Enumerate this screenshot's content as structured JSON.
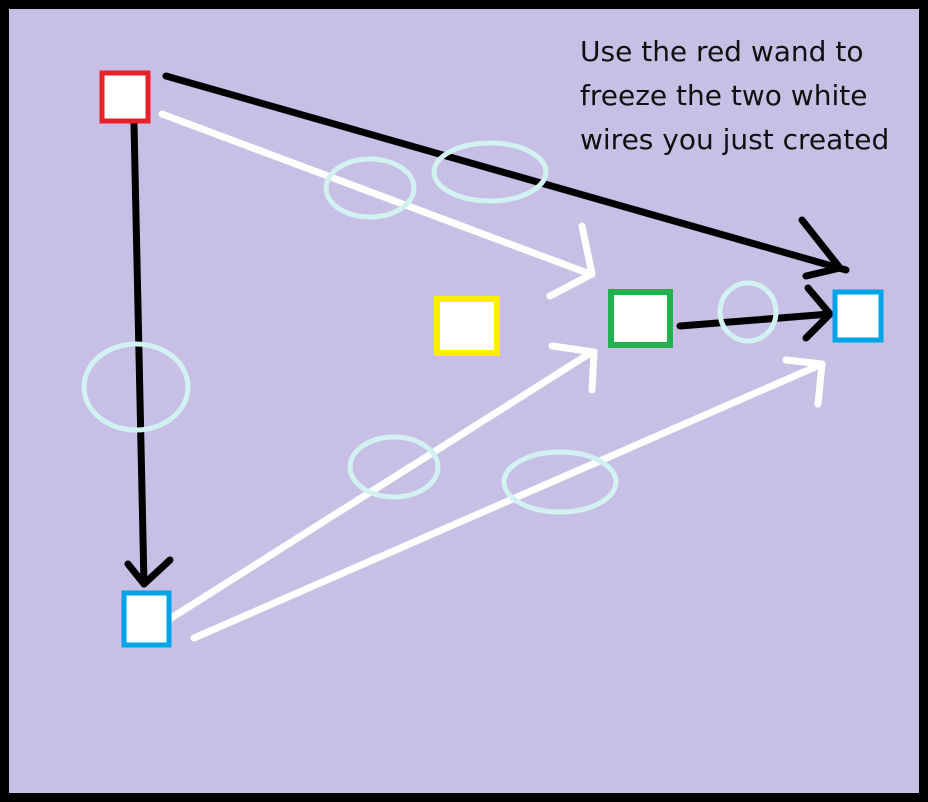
{
  "instruction": "Use the red wand to\nfreeze the two white\nwires you just created",
  "colors": {
    "background": "#c8c0e4",
    "border": "#000000",
    "black_wire": "#000000",
    "white_wire": "#ffffff",
    "ring": "#d2f2f2",
    "node_fill": "#ffffff",
    "red": "#e8202a",
    "yellow": "#ffee00",
    "green": "#22b14c",
    "blue": "#00a2e8"
  },
  "nodes": [
    {
      "name": "red-node",
      "color": "red"
    },
    {
      "name": "yellow-node",
      "color": "yellow"
    },
    {
      "name": "green-node",
      "color": "green"
    },
    {
      "name": "blue-node-right",
      "color": "blue"
    },
    {
      "name": "blue-node-bottom",
      "color": "blue"
    }
  ],
  "wires": [
    {
      "name": "black-wire-red-to-blue-right",
      "color": "black",
      "from": "red-node",
      "to": "blue-node-right"
    },
    {
      "name": "black-wire-red-to-blue-bottom",
      "color": "black",
      "from": "red-node",
      "to": "blue-node-bottom"
    },
    {
      "name": "black-wire-green-to-blue-right",
      "color": "black",
      "from": "green-node",
      "to": "blue-node-right"
    },
    {
      "name": "white-wire-red-to-green",
      "color": "white",
      "from": "red-node",
      "to": "green-node"
    },
    {
      "name": "white-wire-blue-bottom-to-green",
      "color": "white",
      "from": "blue-node-bottom",
      "to": "green-node"
    },
    {
      "name": "white-wire-blue-bottom-to-blue-right",
      "color": "white",
      "from": "blue-node-bottom",
      "to": "blue-node-right"
    }
  ]
}
